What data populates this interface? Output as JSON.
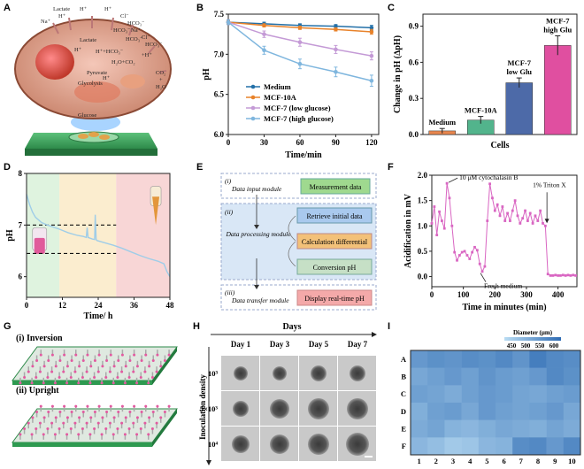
{
  "panels": {
    "A": {
      "label": "A",
      "ions": [
        "Lactate",
        "H⁺",
        "H⁺",
        "Na⁺",
        "H⁺",
        "Lactate",
        "Cl⁻",
        "HCO₃⁻",
        "HCO₃⁻",
        "Na⁺",
        "HCO₃⁻",
        "Cl⁻",
        "HCO₃⁻",
        "H⁺",
        "H⁺+HCO₃⁻",
        "H₂O+CO₂",
        "+H⁺",
        "Pyruvate",
        "H⁺",
        "Glycolysis",
        "CO₂",
        "+",
        "H₂O",
        "Glucose"
      ]
    },
    "B": {
      "label": "B"
    },
    "C": {
      "label": "C"
    },
    "D": {
      "label": "D"
    },
    "E": {
      "label": "E",
      "modules": [
        {
          "num": "(i)",
          "name": "Data input module",
          "boxes": [
            "Measurement data"
          ]
        },
        {
          "num": "(ii)",
          "name": "Data processing module",
          "boxes": [
            "Retrieve initial data",
            "Calculation differential",
            "Conversion pH"
          ]
        },
        {
          "num": "(iii)",
          "name": "Data transfer module",
          "boxes": [
            "Display real-time pH"
          ]
        }
      ]
    },
    "F": {
      "label": "F"
    },
    "G": {
      "label": "G",
      "views": [
        "(i) Inversion",
        "(ii) Upright"
      ]
    },
    "H": {
      "label": "H",
      "top_axis": "Days",
      "side_axis": "Inoculation density",
      "days": [
        "Day 1",
        "Day 3",
        "Day 5",
        "Day 7"
      ],
      "densities": [
        "10³",
        "5×10³",
        "10⁴"
      ]
    },
    "I": {
      "label": "I"
    }
  },
  "chart_data": [
    {
      "panel": "B",
      "type": "line",
      "xlabel": "Time/min",
      "ylabel": "pH",
      "x": [
        0,
        30,
        60,
        90,
        120
      ],
      "xticks": [
        0,
        30,
        60,
        90,
        120
      ],
      "yticks": [
        6.0,
        6.5,
        7.0,
        7.5
      ],
      "xlim": [
        0,
        126
      ],
      "ylim": [
        6.0,
        7.5
      ],
      "series": [
        {
          "name": "Medium",
          "color": "#2370a8",
          "values": [
            7.4,
            7.38,
            7.36,
            7.35,
            7.33
          ],
          "err": [
            0.02,
            0.02,
            0.02,
            0.02,
            0.03
          ]
        },
        {
          "name": "MCF-10A",
          "color": "#e8822a",
          "values": [
            7.4,
            7.36,
            7.33,
            7.31,
            7.28
          ],
          "err": [
            0.02,
            0.02,
            0.02,
            0.02,
            0.03
          ]
        },
        {
          "name": "MCF-7 (low glucose)",
          "color": "#c49ad6",
          "values": [
            7.4,
            7.25,
            7.15,
            7.06,
            6.98
          ],
          "err": [
            0.03,
            0.04,
            0.05,
            0.05,
            0.05
          ]
        },
        {
          "name": "MCF-7 (high glucose)",
          "color": "#7fb6de",
          "values": [
            7.4,
            7.05,
            6.88,
            6.78,
            6.67
          ],
          "err": [
            0.03,
            0.05,
            0.06,
            0.06,
            0.07
          ]
        }
      ]
    },
    {
      "panel": "C",
      "type": "bar",
      "xlabel": "Cells",
      "ylabel": "Change in pH (∆pH)",
      "categories": [
        "Medium",
        "MCF-10A",
        "MCF-7 low Glu",
        "MCF-7 high Glu"
      ],
      "values": [
        0.03,
        0.12,
        0.43,
        0.74
      ],
      "err": [
        0.02,
        0.03,
        0.04,
        0.08
      ],
      "colors": [
        "#e8864e",
        "#52b48c",
        "#4d6aa8",
        "#e04fa0"
      ],
      "yticks": [
        0.0,
        0.3,
        0.6,
        0.9
      ],
      "ylim": [
        0,
        1.0
      ]
    },
    {
      "panel": "D",
      "type": "line",
      "xlabel": "Time/ h",
      "ylabel": "pH",
      "xticks": [
        0,
        12,
        24,
        36,
        48
      ],
      "yticks": [
        6,
        7,
        8
      ],
      "xlim": [
        0,
        48
      ],
      "ylim": [
        5.6,
        8.0
      ],
      "reference_lines": [
        7.0,
        6.45
      ],
      "shaded_regions": [
        {
          "from": 0,
          "to": 11,
          "color": "#dff3df"
        },
        {
          "from": 11,
          "to": 30,
          "color": "#fbedcf"
        },
        {
          "from": 30,
          "to": 48,
          "color": "#f8d6d6"
        }
      ],
      "series": [
        {
          "name": "pH",
          "color": "#9fcde8",
          "x": [
            0,
            1,
            2,
            3,
            5,
            7,
            9,
            11,
            14,
            17,
            19,
            20,
            20.3,
            20.6,
            22,
            22.8,
            23,
            23.3,
            23.6,
            26,
            29,
            32,
            35,
            38,
            41,
            44,
            46,
            47,
            47.5,
            48
          ],
          "values": [
            7.6,
            7.4,
            7.25,
            7.15,
            7.05,
            7.0,
            6.96,
            6.92,
            6.85,
            6.8,
            6.78,
            6.76,
            6.95,
            6.76,
            6.73,
            6.72,
            7.2,
            6.72,
            6.7,
            6.66,
            6.61,
            6.55,
            6.48,
            6.41,
            6.35,
            6.3,
            6.25,
            6.1,
            6.05,
            6.0
          ]
        }
      ]
    },
    {
      "panel": "F",
      "type": "line",
      "xlabel": "Time in minutes (min)",
      "ylabel": "Acidification in mV",
      "xticks": [
        0,
        100,
        200,
        300,
        400
      ],
      "yticks": [
        0.0,
        0.5,
        1.0,
        1.5,
        2.0
      ],
      "xlim": [
        0,
        460
      ],
      "ylim": [
        -0.2,
        2.0
      ],
      "annotations": [
        {
          "text": "10 μM cytochalasin B",
          "x": 48,
          "y": 1.84
        },
        {
          "text": "Fresh medium",
          "x": 160,
          "y": 0.12
        },
        {
          "text": "1% Triton X",
          "x": 365,
          "y": 1.0
        }
      ],
      "series": [
        {
          "name": "Acidification",
          "color": "#d966c2",
          "x": [
            0,
            8,
            16,
            24,
            32,
            40,
            48,
            56,
            64,
            72,
            80,
            88,
            96,
            104,
            112,
            120,
            128,
            136,
            144,
            152,
            160,
            168,
            176,
            184,
            192,
            200,
            208,
            216,
            224,
            232,
            240,
            248,
            256,
            264,
            272,
            280,
            288,
            296,
            304,
            312,
            320,
            328,
            336,
            344,
            352,
            360,
            368,
            376,
            384,
            392,
            400,
            408,
            416,
            424,
            432,
            440,
            448,
            456
          ],
          "values": [
            1.05,
            1.38,
            0.82,
            1.28,
            1.1,
            0.95,
            1.84,
            1.55,
            1.0,
            0.48,
            0.32,
            0.42,
            0.48,
            0.5,
            0.42,
            0.35,
            0.48,
            0.58,
            0.52,
            0.25,
            0.1,
            0.2,
            1.1,
            1.83,
            1.55,
            1.3,
            1.42,
            1.2,
            1.38,
            1.1,
            1.25,
            1.1,
            1.3,
            1.5,
            1.2,
            1.05,
            1.15,
            1.3,
            1.1,
            1.25,
            1.05,
            1.2,
            1.1,
            1.3,
            1.05,
            1.0,
            0.05,
            0.02,
            0.02,
            0.03,
            0.02,
            0.02,
            0.03,
            0.02,
            0.03,
            0.02,
            0.03,
            0.02
          ]
        }
      ]
    },
    {
      "panel": "I",
      "type": "heatmap",
      "title": "Diameter (μm)",
      "colorbar_ticks": [
        "450",
        "500",
        "550",
        "600"
      ],
      "colorbar_range": [
        450,
        600
      ],
      "rows": [
        "A",
        "B",
        "C",
        "D",
        "E",
        "F"
      ],
      "cols": [
        "1",
        "2",
        "3",
        "4",
        "5",
        "6",
        "7",
        "8",
        "9",
        "10"
      ],
      "values": [
        [
          540,
          550,
          545,
          555,
          550,
          560,
          545,
          575,
          560,
          555
        ],
        [
          520,
          530,
          540,
          530,
          545,
          535,
          530,
          540,
          560,
          550
        ],
        [
          530,
          525,
          515,
          530,
          540,
          535,
          525,
          520,
          530,
          535
        ],
        [
          510,
          530,
          535,
          520,
          540,
          530,
          525,
          530,
          540,
          520
        ],
        [
          515,
          525,
          505,
          500,
          510,
          520,
          515,
          510,
          525,
          515
        ],
        [
          500,
          490,
          475,
          480,
          500,
          505,
          555,
          560,
          540,
          560
        ]
      ]
    }
  ]
}
